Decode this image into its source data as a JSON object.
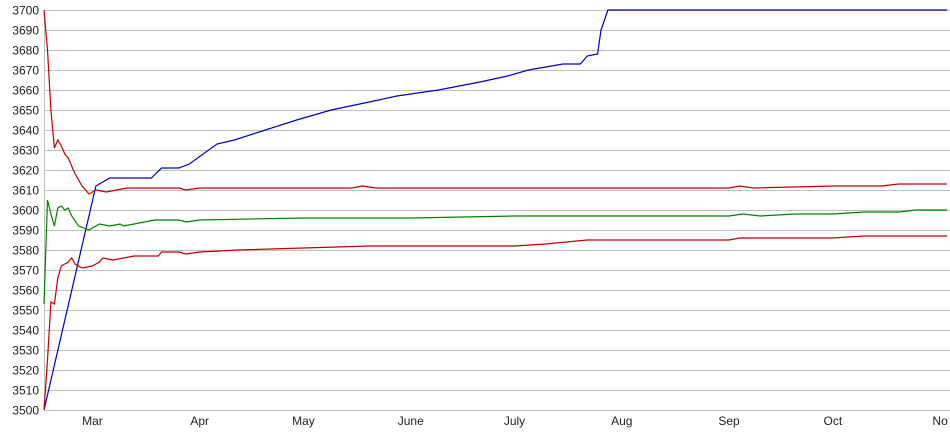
{
  "chart_data": {
    "type": "line",
    "title": "",
    "xlabel": "",
    "ylabel": "",
    "ylim": [
      3500,
      3700
    ],
    "xlim": [
      "02-15",
      "11-03"
    ],
    "grid": true,
    "y_ticks": [
      3500,
      3510,
      3520,
      3530,
      3540,
      3550,
      3560,
      3570,
      3580,
      3590,
      3600,
      3610,
      3620,
      3630,
      3640,
      3650,
      3660,
      3670,
      3680,
      3690,
      3700
    ],
    "x_ticks": [
      {
        "label": "Mar",
        "date": "03-01"
      },
      {
        "label": "Apr",
        "date": "04-01"
      },
      {
        "label": "May",
        "date": "05-01"
      },
      {
        "label": "June",
        "date": "06-01"
      },
      {
        "label": "July",
        "date": "07-01"
      },
      {
        "label": "Aug",
        "date": "08-01"
      },
      {
        "label": "Sep",
        "date": "09-01"
      },
      {
        "label": "Oct",
        "date": "10-01"
      },
      {
        "label": "No",
        "date": "11-01"
      }
    ],
    "series": [
      {
        "color": "#0000c0",
        "points": [
          [
            "02-15",
            3500
          ],
          [
            "03-02",
            3612
          ],
          [
            "03-06",
            3616
          ],
          [
            "03-18",
            3616
          ],
          [
            "03-21",
            3621
          ],
          [
            "03-26",
            3621
          ],
          [
            "03-29",
            3623
          ],
          [
            "04-06",
            3633
          ],
          [
            "04-11",
            3635
          ],
          [
            "04-20",
            3640
          ],
          [
            "04-29",
            3645
          ],
          [
            "05-09",
            3650
          ],
          [
            "05-20",
            3654
          ],
          [
            "05-28",
            3657
          ],
          [
            "06-09",
            3660
          ],
          [
            "06-21",
            3664
          ],
          [
            "06-29",
            3667
          ],
          [
            "07-05",
            3670
          ],
          [
            "07-15",
            3673
          ],
          [
            "07-20",
            3673
          ],
          [
            "07-22",
            3677
          ],
          [
            "07-25",
            3678
          ],
          [
            "07-26",
            3690
          ],
          [
            "07-28",
            3700
          ],
          [
            "11-03",
            3700
          ]
        ]
      },
      {
        "color": "#c00000",
        "points": [
          [
            "02-15",
            3700
          ],
          [
            "02-16",
            3680
          ],
          [
            "02-17",
            3650
          ],
          [
            "02-18",
            3631
          ],
          [
            "02-19",
            3635
          ],
          [
            "02-20",
            3632
          ],
          [
            "02-21",
            3628
          ],
          [
            "02-22",
            3626
          ],
          [
            "02-24",
            3618
          ],
          [
            "02-26",
            3612
          ],
          [
            "02-28",
            3608
          ],
          [
            "03-02",
            3610
          ],
          [
            "03-05",
            3609
          ],
          [
            "03-08",
            3610
          ],
          [
            "03-11",
            3611
          ],
          [
            "03-26",
            3611
          ],
          [
            "03-28",
            3610
          ],
          [
            "04-01",
            3611
          ],
          [
            "05-15",
            3611
          ],
          [
            "05-18",
            3612
          ],
          [
            "05-22",
            3611
          ],
          [
            "07-01",
            3611
          ],
          [
            "09-01",
            3611
          ],
          [
            "09-04",
            3612
          ],
          [
            "09-08",
            3611
          ],
          [
            "10-01",
            3612
          ],
          [
            "10-15",
            3612
          ],
          [
            "10-20",
            3613
          ],
          [
            "11-03",
            3613
          ]
        ]
      },
      {
        "color": "#008000",
        "points": [
          [
            "02-15",
            3553
          ],
          [
            "02-16",
            3605
          ],
          [
            "02-17",
            3598
          ],
          [
            "02-18",
            3592
          ],
          [
            "02-19",
            3601
          ],
          [
            "02-20",
            3602
          ],
          [
            "02-21",
            3600
          ],
          [
            "02-22",
            3601
          ],
          [
            "02-23",
            3597
          ],
          [
            "02-25",
            3592
          ],
          [
            "02-28",
            3590
          ],
          [
            "03-03",
            3593
          ],
          [
            "03-06",
            3592
          ],
          [
            "03-09",
            3593
          ],
          [
            "03-10",
            3592
          ],
          [
            "03-16",
            3594
          ],
          [
            "03-19",
            3595
          ],
          [
            "03-26",
            3595
          ],
          [
            "03-28",
            3594
          ],
          [
            "04-01",
            3595
          ],
          [
            "05-01",
            3596
          ],
          [
            "06-01",
            3596
          ],
          [
            "07-01",
            3597
          ],
          [
            "08-01",
            3597
          ],
          [
            "09-01",
            3597
          ],
          [
            "09-05",
            3598
          ],
          [
            "09-10",
            3597
          ],
          [
            "09-20",
            3598
          ],
          [
            "10-01",
            3598
          ],
          [
            "10-10",
            3599
          ],
          [
            "10-20",
            3599
          ],
          [
            "10-25",
            3600
          ],
          [
            "11-03",
            3600
          ]
        ]
      },
      {
        "color": "#c00000",
        "points": [
          [
            "02-15",
            3500
          ],
          [
            "02-16",
            3525
          ],
          [
            "02-17",
            3554
          ],
          [
            "02-18",
            3553
          ],
          [
            "02-19",
            3566
          ],
          [
            "02-20",
            3572
          ],
          [
            "02-22",
            3574
          ],
          [
            "02-23",
            3576
          ],
          [
            "02-24",
            3573
          ],
          [
            "02-26",
            3571
          ],
          [
            "03-01",
            3572
          ],
          [
            "03-03",
            3574
          ],
          [
            "03-04",
            3576
          ],
          [
            "03-07",
            3575
          ],
          [
            "03-10",
            3576
          ],
          [
            "03-13",
            3577
          ],
          [
            "03-20",
            3577
          ],
          [
            "03-21",
            3579
          ],
          [
            "03-26",
            3579
          ],
          [
            "03-28",
            3578
          ],
          [
            "04-01",
            3579
          ],
          [
            "04-12",
            3580
          ],
          [
            "05-01",
            3581
          ],
          [
            "05-20",
            3582
          ],
          [
            "07-01",
            3582
          ],
          [
            "07-10",
            3583
          ],
          [
            "07-22",
            3585
          ],
          [
            "09-01",
            3585
          ],
          [
            "09-04",
            3586
          ],
          [
            "10-01",
            3586
          ],
          [
            "10-10",
            3587
          ],
          [
            "11-03",
            3587
          ]
        ]
      }
    ]
  }
}
